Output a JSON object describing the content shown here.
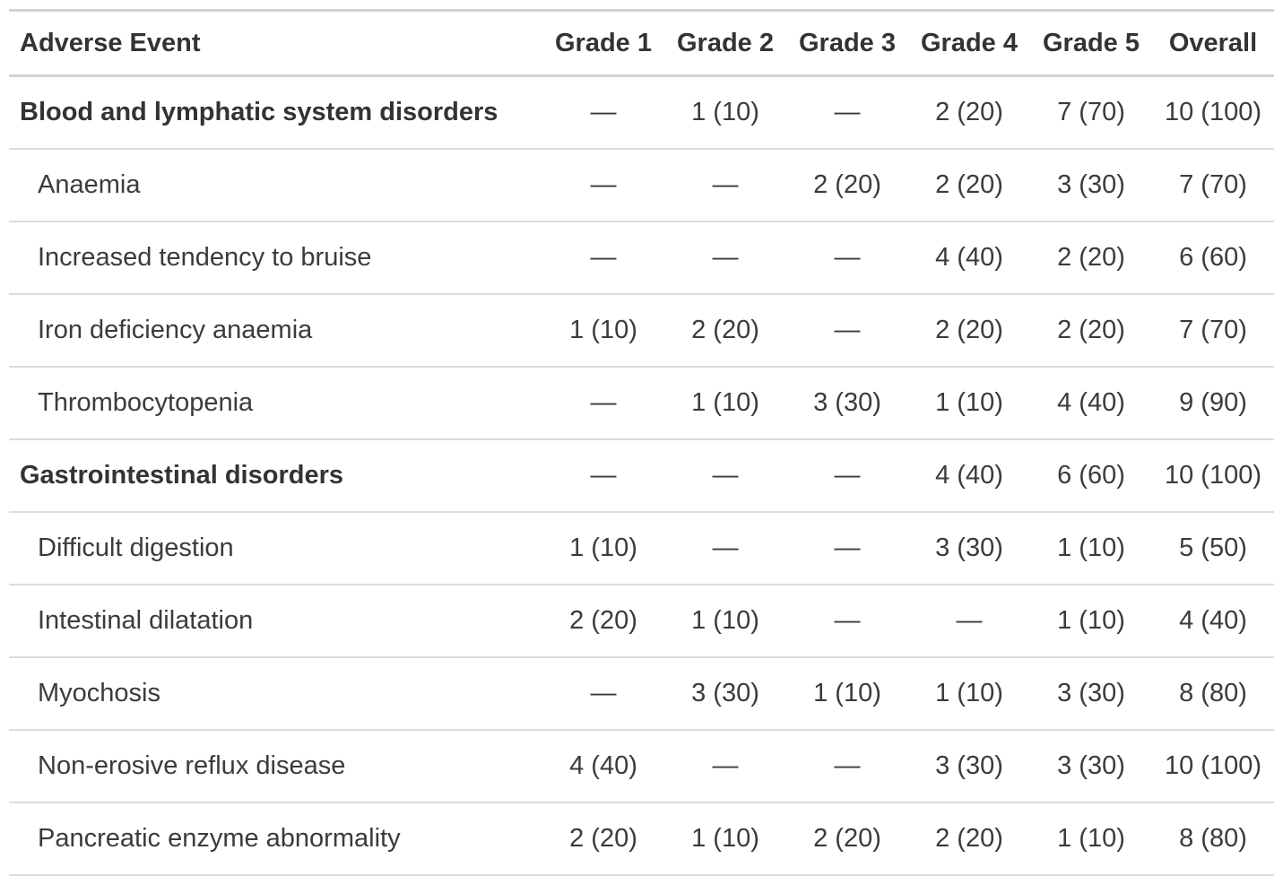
{
  "chart_data": {
    "type": "table",
    "title": "",
    "columns": [
      "Adverse Event",
      "Grade 1",
      "Grade 2",
      "Grade 3",
      "Grade 4",
      "Grade 5",
      "Overall"
    ],
    "rows": [
      {
        "label": "Blood and lymphatic system disorders",
        "category": true,
        "values": [
          "—",
          "1 (10)",
          "—",
          "2 (20)",
          "7 (70)",
          "10 (100)"
        ]
      },
      {
        "label": "Anaemia",
        "category": false,
        "values": [
          "—",
          "—",
          "2 (20)",
          "2 (20)",
          "3 (30)",
          "7 (70)"
        ]
      },
      {
        "label": "Increased tendency to bruise",
        "category": false,
        "values": [
          "—",
          "—",
          "—",
          "4 (40)",
          "2 (20)",
          "6 (60)"
        ]
      },
      {
        "label": "Iron deficiency anaemia",
        "category": false,
        "values": [
          "1 (10)",
          "2 (20)",
          "—",
          "2 (20)",
          "2 (20)",
          "7 (70)"
        ]
      },
      {
        "label": "Thrombocytopenia",
        "category": false,
        "values": [
          "—",
          "1 (10)",
          "3 (30)",
          "1 (10)",
          "4 (40)",
          "9 (90)"
        ]
      },
      {
        "label": "Gastrointestinal disorders",
        "category": true,
        "values": [
          "—",
          "—",
          "—",
          "4 (40)",
          "6 (60)",
          "10 (100)"
        ]
      },
      {
        "label": "Difficult digestion",
        "category": false,
        "values": [
          "1 (10)",
          "—",
          "—",
          "3 (30)",
          "1 (10)",
          "5 (50)"
        ]
      },
      {
        "label": "Intestinal dilatation",
        "category": false,
        "values": [
          "2 (20)",
          "1 (10)",
          "—",
          "—",
          "1 (10)",
          "4 (40)"
        ]
      },
      {
        "label": "Myochosis",
        "category": false,
        "values": [
          "—",
          "3 (30)",
          "1 (10)",
          "1 (10)",
          "3 (30)",
          "8 (80)"
        ]
      },
      {
        "label": "Non-erosive reflux disease",
        "category": false,
        "values": [
          "4 (40)",
          "—",
          "—",
          "3 (30)",
          "3 (30)",
          "10 (100)"
        ]
      },
      {
        "label": "Pancreatic enzyme abnormality",
        "category": false,
        "values": [
          "2 (20)",
          "1 (10)",
          "2 (20)",
          "2 (20)",
          "1 (10)",
          "8 (80)"
        ]
      }
    ],
    "layout_hints": {
      "value_format": "n (%)",
      "empty_cell_glyph": "—",
      "numeric_columns_aligned": "center",
      "category_rows_bold": true,
      "sub_rows_indented": true
    }
  },
  "colors": {
    "text": "#3b3b3b",
    "header_text": "#333333",
    "header_rule": "#d1d1d1",
    "row_rule": "#dcdcdc",
    "background": "#ffffff"
  }
}
